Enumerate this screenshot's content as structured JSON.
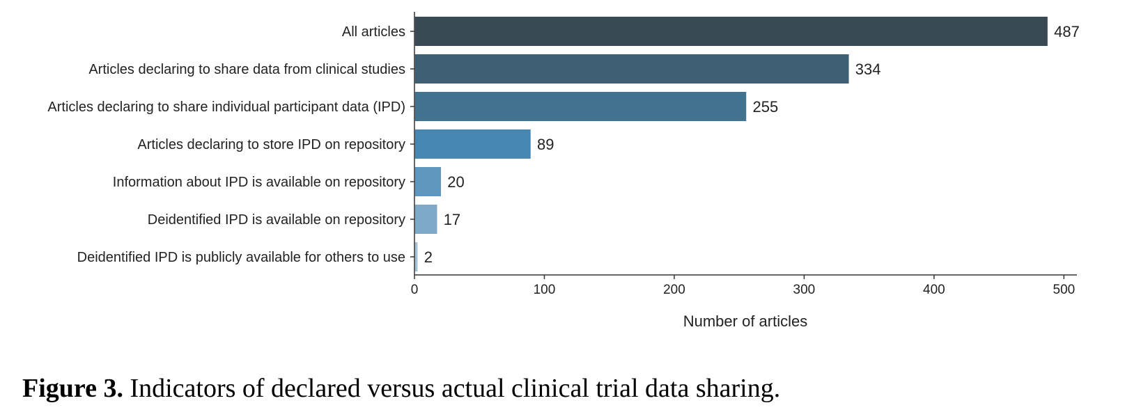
{
  "chart_data": {
    "type": "bar",
    "orientation": "horizontal",
    "categories": [
      "All articles",
      "Articles declaring to share data from clinical studies",
      "Articles declaring to share individual participant data (IPD)",
      "Articles declaring to store IPD on repository",
      "Information about IPD is available on repository",
      "Deidentified IPD is available on repository",
      "Deidentified IPD is publicly available for others to use"
    ],
    "values": [
      487,
      334,
      255,
      89,
      20,
      17,
      2
    ],
    "colors": [
      "#3a4a55",
      "#3e5f74",
      "#43728f",
      "#4786b0",
      "#5f96c0",
      "#7ea9c9",
      "#a3c2d8"
    ],
    "xlabel": "Number of articles",
    "xlim": [
      0,
      510
    ],
    "xticks": [
      0,
      100,
      200,
      300,
      400,
      500
    ],
    "grid": false
  },
  "caption": {
    "label": "Figure 3.",
    "text": " Indicators of declared versus actual clinical trial data sharing."
  }
}
